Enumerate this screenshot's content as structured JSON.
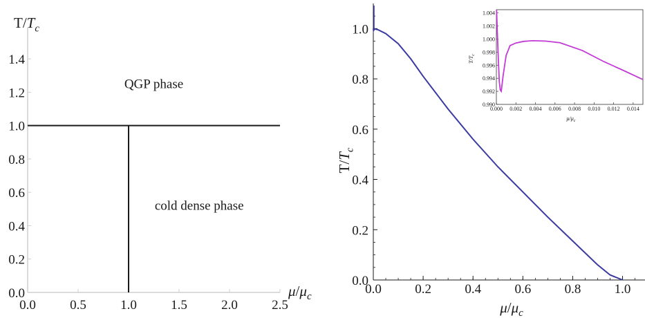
{
  "chart_data": [
    {
      "type": "line",
      "ylabel_prefix": "T/",
      "ylabel_italic": "T",
      "ylabel_sub": "c",
      "xlabel_italic": "μ",
      "xlabel_rest": "/",
      "xlabel_italic2": "μ",
      "xlabel_sub": "c",
      "xlim": [
        0,
        2.5
      ],
      "ylim": [
        0,
        1.5
      ],
      "xticks": [
        "0.0",
        "0.5",
        "1.0",
        "1.5",
        "2.0",
        "2.5"
      ],
      "yticks": [
        "0.0",
        "0.2",
        "0.4",
        "0.6",
        "0.8",
        "1.0",
        "1.2",
        "1.4"
      ],
      "series": [
        {
          "x": [
            0,
            2.5
          ],
          "y": [
            1.0,
            1.0
          ]
        },
        {
          "x": [
            1.0,
            1.0
          ],
          "y": [
            0,
            1.0
          ]
        }
      ],
      "annotations": [
        {
          "text": "QGP phase",
          "x": 1.25,
          "y": 1.25
        },
        {
          "text": "cold dense phase",
          "x": 1.7,
          "y": 0.52
        }
      ],
      "line_color": "#1a1a1a"
    },
    {
      "type": "line",
      "ylabel_prefix": "T/",
      "ylabel_italic": "T",
      "ylabel_sub": "c",
      "xlabel_italic": "μ",
      "xlabel_rest": "/",
      "xlabel_italic2": "μ",
      "xlabel_sub": "c",
      "xlim": [
        0,
        1.09
      ],
      "ylim": [
        0,
        1.1
      ],
      "xticks": [
        "0.0",
        "0.2",
        "0.4",
        "0.6",
        "0.8",
        "1.0"
      ],
      "yticks": [
        "0.0",
        "0.2",
        "0.4",
        "0.6",
        "0.8",
        "1.0"
      ],
      "series": [
        {
          "x": [
            0,
            0.001,
            0.005,
            0.02,
            0.05,
            0.1,
            0.15,
            0.2,
            0.3,
            0.4,
            0.5,
            0.6,
            0.7,
            0.8,
            0.9,
            0.95,
            1.0
          ],
          "y": [
            1.0,
            0.992,
            0.999,
            0.995,
            0.98,
            0.94,
            0.88,
            0.81,
            0.68,
            0.56,
            0.45,
            0.35,
            0.25,
            0.155,
            0.06,
            0.02,
            0.0
          ]
        }
      ],
      "line_color": "#3a3aa0",
      "inset": {
        "ylabel": "T/T",
        "ylabel_sub": "c",
        "xlabel": "μ/μ",
        "xlabel_sub": "c",
        "xlim": [
          0,
          0.015
        ],
        "ylim": [
          0.99,
          1.0045
        ],
        "xticks": [
          "0.000",
          "0.002",
          "0.004",
          "0.006",
          "0.008",
          "0.010",
          "0.012",
          "0.014"
        ],
        "yticks": [
          "0.990",
          "0.992",
          "0.994",
          "0.996",
          "0.998",
          "1.000",
          "1.002",
          "1.004"
        ],
        "x": [
          2e-05,
          0.0001,
          0.0002,
          0.0003,
          0.0004,
          0.0005,
          0.0007,
          0.001,
          0.0014,
          0.002,
          0.0028,
          0.0037,
          0.005,
          0.0065,
          0.0088,
          0.011,
          0.013,
          0.015
        ],
        "y": [
          1.0045,
          1.001,
          0.997,
          0.9935,
          0.9922,
          0.992,
          0.9945,
          0.9975,
          0.999,
          0.9994,
          0.99965,
          0.99975,
          0.9997,
          0.99945,
          0.99825,
          0.99655,
          0.9952,
          0.9938
        ],
        "line_color": "#c23bd6"
      }
    }
  ]
}
